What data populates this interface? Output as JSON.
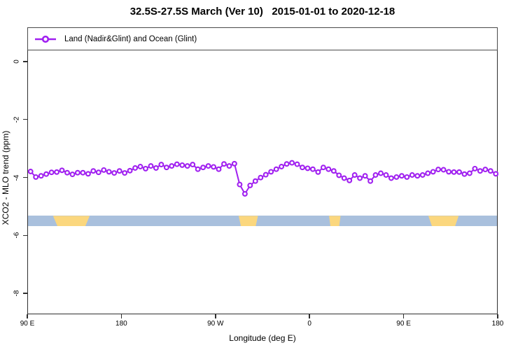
{
  "title": "32.5S-27.5S March (Ver 10)   2015-01-01 to 2020-12-18",
  "legend": {
    "label": "Land (Nadir&Glint) and Ocean (Glint)"
  },
  "axes": {
    "x": {
      "label": "Longitude (deg E)",
      "tick_values": [
        90,
        180,
        270,
        360,
        450,
        540
      ],
      "tick_labels": [
        "90 E",
        "180",
        "90 W",
        "0",
        "90 E",
        "180"
      ]
    },
    "y": {
      "label": "XCO2 - MLO trend (ppm)",
      "tick_values": [
        0,
        -2,
        -4,
        -6,
        -8
      ],
      "tick_labels": [
        "0",
        "-2",
        "-4",
        "-6",
        "-8"
      ]
    }
  },
  "colors": {
    "line": "#A020F0",
    "marker_fill": "#FFFFFF",
    "ocean": "#A9C0DD",
    "land": "#FBD77E",
    "axis": "#2F2F2F",
    "background": "#FFFFFF"
  },
  "land_ocean_strip": {
    "description": "land(yellow)/ocean(blue) indicator band",
    "value_range_ppm": [
      -5.3,
      -5.66
    ],
    "land_segments_lon": [
      [
        114,
        149
      ],
      [
        291.5,
        310
      ],
      [
        378,
        389
      ],
      [
        473,
        502
      ]
    ]
  },
  "chart_data": {
    "type": "line",
    "title": "32.5S-27.5S March (Ver 10)   2015-01-01 to 2020-12-18",
    "xlabel": "Longitude (deg E)",
    "ylabel": "XCO2 - MLO trend (ppm)",
    "xlim": [
      90,
      540
    ],
    "ylim": [
      -8.72,
      1.18
    ],
    "grid": false,
    "legend_position": "top-left-inside",
    "x": [
      92.5,
      97.5,
      102.5,
      107.5,
      112.5,
      117.5,
      122.5,
      127.5,
      132.5,
      137.5,
      142.5,
      147.5,
      152.5,
      157.5,
      162.5,
      167.5,
      172.5,
      177.5,
      182.5,
      187.5,
      192.5,
      197.5,
      202.5,
      207.5,
      212.5,
      217.5,
      222.5,
      227.5,
      232.5,
      237.5,
      242.5,
      247.5,
      252.5,
      257.5,
      262.5,
      267.5,
      272.5,
      277.5,
      282.5,
      287.5,
      292.5,
      297.5,
      302.5,
      307.5,
      312.5,
      317.5,
      322.5,
      327.5,
      332.5,
      337.5,
      342.5,
      347.5,
      352.5,
      357.5,
      362.5,
      367.5,
      372.5,
      377.5,
      382.5,
      387.5,
      392.5,
      397.5,
      402.5,
      407.5,
      412.5,
      417.5,
      422.5,
      427.5,
      432.5,
      437.5,
      442.5,
      447.5,
      452.5,
      457.5,
      462.5,
      467.5,
      472.5,
      477.5,
      482.5,
      487.5,
      492.5,
      497.5,
      502.5,
      507.5,
      512.5,
      517.5,
      522.5,
      527.5,
      532.5,
      537.5
    ],
    "series": [
      {
        "name": "Land (Nadir&Glint) and Ocean (Glint)",
        "color": "#A020F0",
        "marker": "open-circle",
        "values": [
          -3.77,
          -3.96,
          -3.92,
          -3.86,
          -3.8,
          -3.79,
          -3.73,
          -3.81,
          -3.87,
          -3.81,
          -3.81,
          -3.85,
          -3.75,
          -3.8,
          -3.72,
          -3.78,
          -3.82,
          -3.75,
          -3.82,
          -3.74,
          -3.65,
          -3.6,
          -3.67,
          -3.58,
          -3.65,
          -3.53,
          -3.63,
          -3.58,
          -3.52,
          -3.55,
          -3.58,
          -3.53,
          -3.69,
          -3.63,
          -3.58,
          -3.61,
          -3.69,
          -3.51,
          -3.58,
          -3.5,
          -4.22,
          -4.54,
          -4.25,
          -4.1,
          -3.98,
          -3.88,
          -3.78,
          -3.69,
          -3.6,
          -3.51,
          -3.47,
          -3.52,
          -3.63,
          -3.66,
          -3.69,
          -3.79,
          -3.63,
          -3.69,
          -3.75,
          -3.9,
          -4.0,
          -4.08,
          -3.89,
          -4.0,
          -3.92,
          -4.1,
          -3.89,
          -3.83,
          -3.89,
          -4.0,
          -3.96,
          -3.92,
          -3.96,
          -3.89,
          -3.92,
          -3.89,
          -3.83,
          -3.78,
          -3.7,
          -3.71,
          -3.78,
          -3.79,
          -3.79,
          -3.86,
          -3.83,
          -3.67,
          -3.75,
          -3.7,
          -3.75,
          -3.85
        ]
      }
    ]
  }
}
